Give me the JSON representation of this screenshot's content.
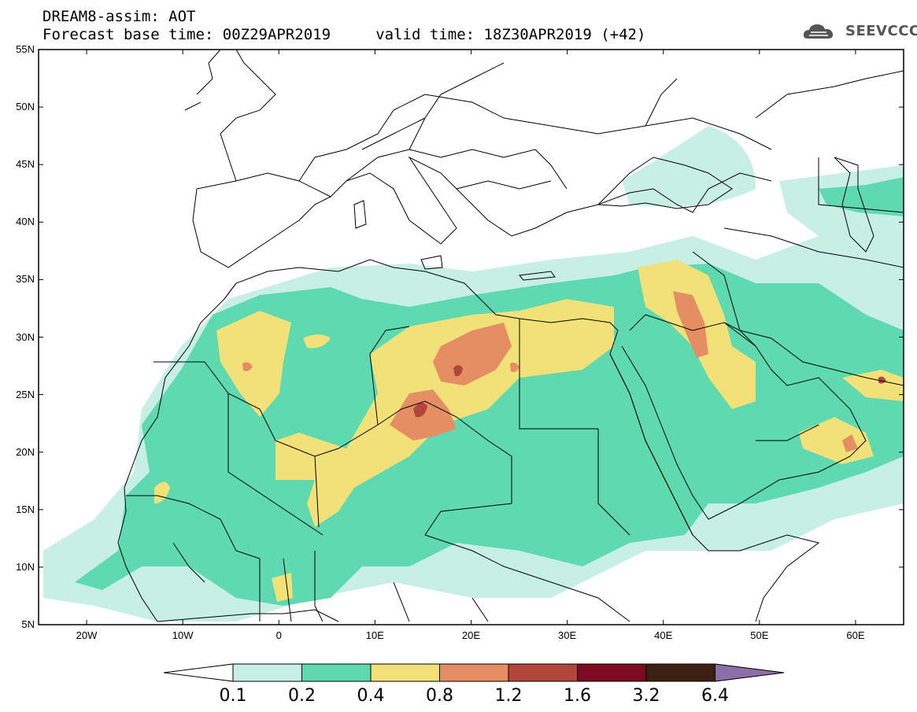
{
  "header": {
    "title_line1": "DREAM8-assim: AOT",
    "title_line2": "Forecast base time: 00Z29APR2019     valid time: 18Z30APR2019 (+42)",
    "logo_text": "SEEVCCC"
  },
  "map": {
    "extent": {
      "lon": [
        -25,
        65
      ],
      "lat": [
        5,
        55
      ]
    },
    "lat_ticks": [
      "55N",
      "50N",
      "45N",
      "40N",
      "35N",
      "30N",
      "25N",
      "20N",
      "15N",
      "10N",
      "5N"
    ],
    "lon_ticks": [
      "20W",
      "10W",
      "0",
      "10E",
      "20E",
      "30E",
      "40E",
      "50E",
      "60E"
    ],
    "field": "AOT"
  },
  "colorbar": {
    "labels": [
      "0.1",
      "0.2",
      "0.4",
      "0.8",
      "1.2",
      "1.6",
      "3.2",
      "6.4"
    ],
    "colors": [
      "#c7efe3",
      "#5ed9b0",
      "#f2e179",
      "#e58e64",
      "#b1473a",
      "#7d0a20",
      "#3c2112",
      "#8b6fa8"
    ]
  }
}
